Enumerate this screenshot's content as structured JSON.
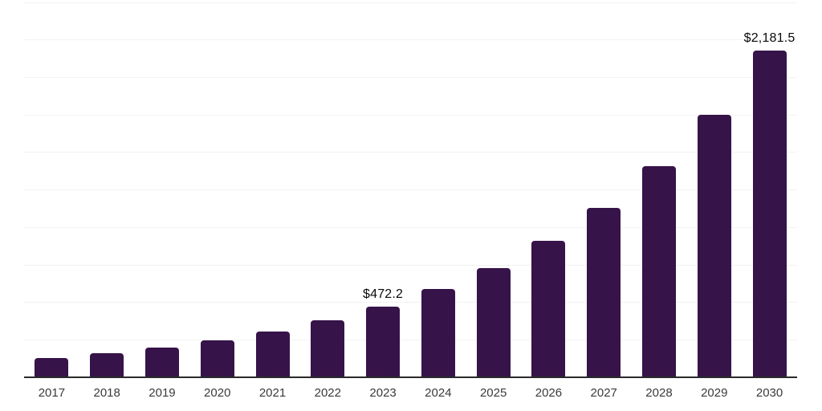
{
  "chart_data": {
    "type": "bar",
    "title": "",
    "xlabel": "",
    "ylabel": "",
    "categories": [
      "2017",
      "2018",
      "2019",
      "2020",
      "2021",
      "2022",
      "2023",
      "2024",
      "2025",
      "2026",
      "2027",
      "2028",
      "2029",
      "2030"
    ],
    "values": [
      127.2,
      158.3,
      197.0,
      245.1,
      305.0,
      379.5,
      472.2,
      587.6,
      731.2,
      909.9,
      1132.3,
      1409.0,
      1753.4,
      2181.5
    ],
    "bar_labels": [
      "",
      "",
      "",
      "",
      "",
      "",
      "$472.2",
      "",
      "",
      "",
      "",
      "",
      "",
      "$2,181.5"
    ],
    "ylim": [
      0,
      2500
    ],
    "grid_interval": 250,
    "grid": "horizontal-only",
    "legend": "none",
    "y_axis_tick_labels": "none",
    "colors": {
      "bar": "#361349",
      "axis_line": "#2a2a2a",
      "gridline": "#f2f2f2",
      "x_tick_text": "#3a3a3a",
      "bar_label_text": "#0a0a0a",
      "background": "#ffffff"
    }
  }
}
